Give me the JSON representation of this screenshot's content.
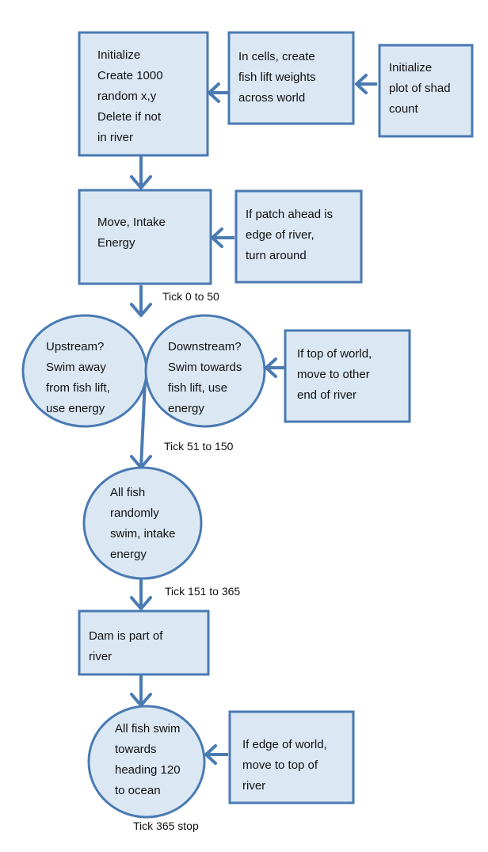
{
  "diagram": {
    "nodes": {
      "init": {
        "lines": [
          "Initialize",
          "Create 1000",
          "random x,y",
          "Delete if not",
          "in river"
        ]
      },
      "weights": {
        "lines": [
          "In cells, create",
          "fish lift weights",
          "across world"
        ]
      },
      "plot": {
        "lines": [
          "Initialize",
          "plot of shad",
          "count"
        ]
      },
      "move": {
        "lines": [
          "Move, Intake",
          "Energy"
        ]
      },
      "patch": {
        "lines": [
          "If patch ahead is",
          "edge of river,",
          "turn around"
        ]
      },
      "upstream": {
        "lines": [
          "Upstream?",
          "Swim away",
          "from fish lift,",
          "use energy"
        ]
      },
      "downstream": {
        "lines": [
          "Downstream?",
          "Swim towards",
          "fish lift, use",
          "energy"
        ]
      },
      "topworld": {
        "lines": [
          "If top of world,",
          "move to other",
          "end of river"
        ]
      },
      "random": {
        "lines": [
          "All fish",
          "randomly",
          "swim, intake",
          "energy"
        ]
      },
      "dam": {
        "lines": [
          "Dam is part of",
          "river"
        ]
      },
      "ocean": {
        "lines": [
          "All fish swim",
          "towards",
          "heading 120",
          "to ocean"
        ]
      },
      "edge": {
        "lines": [
          "If edge of world,",
          "move to top of",
          "river"
        ]
      }
    },
    "tick_labels": {
      "t1": "Tick 0 to 50",
      "t2": "Tick 51 to 150",
      "t3": "Tick 151 to 365",
      "t4": "Tick 365 stop"
    },
    "colors": {
      "fill": "#dbe8f4",
      "stroke": "#4a7ab2",
      "text": "#111111"
    }
  }
}
